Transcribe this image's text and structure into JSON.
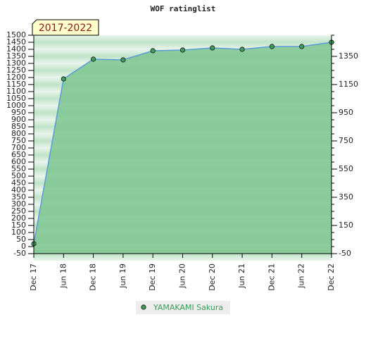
{
  "chart_data": {
    "type": "area",
    "title": "WOF ratinglist",
    "period_label": "2017-2022",
    "categories": [
      "Dec 17",
      "Jun 18",
      "Dec 18",
      "Jun 19",
      "Dec 19",
      "Jun 20",
      "Dec 20",
      "Jun 21",
      "Dec 21",
      "Jun 22",
      "Dec 22"
    ],
    "series": [
      {
        "name": "YAMAKAMI Sakura",
        "color": "#5b9bd5",
        "fill": "#7cc48f",
        "marker": "#3f9e5f",
        "values": [
          20,
          1190,
          1330,
          1325,
          1390,
          1395,
          1410,
          1400,
          1420,
          1420,
          1450
        ]
      }
    ],
    "ylim": [
      -50,
      1500
    ],
    "yticks": [
      -50,
      0,
      50,
      100,
      150,
      200,
      250,
      300,
      350,
      400,
      450,
      500,
      550,
      600,
      650,
      700,
      750,
      800,
      850,
      900,
      950,
      1000,
      1050,
      1100,
      1150,
      1200,
      1250,
      1300,
      1350,
      1400,
      1450,
      1500
    ],
    "y2lim": [
      -50,
      1500
    ],
    "y2ticks": [
      -50,
      150,
      350,
      550,
      750,
      950,
      1150,
      1350
    ],
    "grid": true
  }
}
